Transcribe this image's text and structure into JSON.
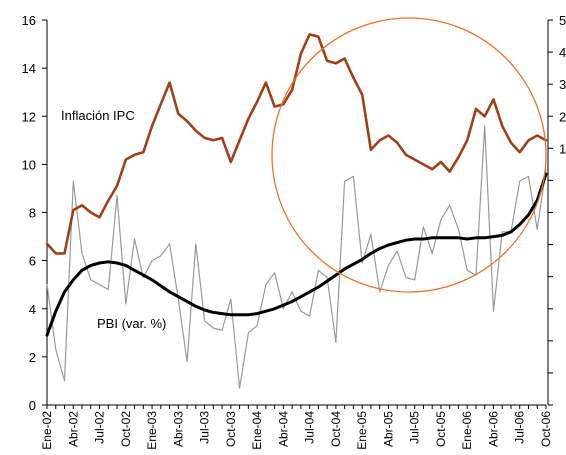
{
  "chart_data": {
    "type": "line",
    "x": [
      "Ene-02",
      "Feb-02",
      "Mar-02",
      "Abr-02",
      "May-02",
      "Jun-02",
      "Jul-02",
      "Ago-02",
      "Sep-02",
      "Oct-02",
      "Nov-02",
      "Dic-02",
      "Ene-03",
      "Feb-03",
      "Mar-03",
      "Abr-03",
      "May-03",
      "Jun-03",
      "Jul-03",
      "Ago-03",
      "Sep-03",
      "Oct-03",
      "Nov-03",
      "Dic-03",
      "Ene-04",
      "Feb-04",
      "Mar-04",
      "Abr-04",
      "May-04",
      "Jun-04",
      "Jul-04",
      "Ago-04",
      "Sep-04",
      "Oct-04",
      "Nov-04",
      "Dic-04",
      "Ene-05",
      "Feb-05",
      "Mar-05",
      "Abr-05",
      "May-05",
      "Jun-05",
      "Jul-05",
      "Ago-05",
      "Sep-05",
      "Oct-05",
      "Nov-05",
      "Dic-05",
      "Ene-06",
      "Feb-06",
      "Mar-06",
      "Abr-06",
      "May-06",
      "Jun-06",
      "Jul-06",
      "Ago-06",
      "Sep-06",
      "Oct-06"
    ],
    "x_tick_labels": [
      "Ene-02",
      "Abr-02",
      "Jul-02",
      "Oct-02",
      "Ene-03",
      "Abr-03",
      "Jul-03",
      "Oct-03",
      "Ene-04",
      "Abr-04",
      "Jul-04",
      "Oct-04",
      "Ene-05",
      "Abr-05",
      "Jul-05",
      "Oct-05",
      "Ene-06",
      "Abr-06",
      "Jul-06",
      "Oct-06"
    ],
    "ylim": [
      0,
      16
    ],
    "y_ticks": [
      0,
      2,
      4,
      6,
      8,
      10,
      12,
      14,
      16
    ],
    "y2_ticks_visible": [
      "5",
      "4",
      "3",
      "2",
      "1"
    ],
    "grid": false,
    "series": [
      {
        "name": "Inflación IPC",
        "color": "#A0401A",
        "values": [
          6.7,
          6.3,
          6.3,
          8.1,
          8.3,
          8.0,
          7.8,
          8.5,
          9.1,
          10.2,
          10.4,
          10.5,
          11.6,
          12.5,
          13.4,
          12.1,
          11.8,
          11.4,
          11.1,
          11.0,
          11.1,
          10.1,
          11.0,
          11.9,
          12.6,
          13.4,
          12.4,
          12.5,
          13.1,
          14.6,
          15.4,
          15.3,
          14.3,
          14.2,
          14.4,
          13.6,
          12.9,
          10.6,
          11.0,
          11.2,
          10.9,
          10.4,
          10.2,
          10.0,
          9.8,
          10.1,
          9.7,
          10.3,
          11.0,
          12.3,
          12.0,
          12.7,
          11.6,
          10.9,
          10.5,
          11.0,
          11.2,
          11.0
        ]
      },
      {
        "name": "PBI (var. %)",
        "color": "#000000",
        "values": [
          2.9,
          3.9,
          4.7,
          5.2,
          5.6,
          5.8,
          5.9,
          5.95,
          5.9,
          5.8,
          5.6,
          5.4,
          5.2,
          4.95,
          4.7,
          4.5,
          4.3,
          4.1,
          3.95,
          3.85,
          3.8,
          3.75,
          3.75,
          3.75,
          3.8,
          3.9,
          4.0,
          4.15,
          4.3,
          4.5,
          4.7,
          4.9,
          5.15,
          5.4,
          5.65,
          5.85,
          6.05,
          6.3,
          6.5,
          6.65,
          6.75,
          6.85,
          6.9,
          6.9,
          6.95,
          6.95,
          6.95,
          6.95,
          6.9,
          6.95,
          6.95,
          7.0,
          7.05,
          7.2,
          7.5,
          7.9,
          8.5,
          9.6
        ]
      },
      {
        "name": "",
        "color": "#999999",
        "values": [
          5.0,
          2.3,
          1.0,
          9.3,
          6.3,
          5.2,
          5.0,
          4.8,
          8.7,
          4.2,
          6.9,
          5.3,
          6.0,
          6.2,
          6.7,
          4.4,
          1.8,
          6.7,
          3.5,
          3.2,
          3.1,
          4.4,
          0.7,
          3.0,
          3.3,
          5.0,
          5.5,
          4.0,
          4.7,
          3.9,
          3.7,
          5.6,
          5.3,
          2.6,
          9.3,
          9.5,
          5.9,
          7.1,
          4.7,
          5.8,
          6.4,
          5.3,
          5.2,
          7.4,
          6.3,
          7.7,
          8.3,
          7.3,
          5.6,
          5.4,
          11.6,
          3.9,
          7.2,
          7.2,
          9.3,
          9.5,
          7.3,
          9.8
        ]
      }
    ],
    "annotations": [
      "Inflación IPC",
      "PBI (var. %)"
    ],
    "highlight": {
      "shape": "ellipse",
      "color": "#E8742A"
    }
  }
}
